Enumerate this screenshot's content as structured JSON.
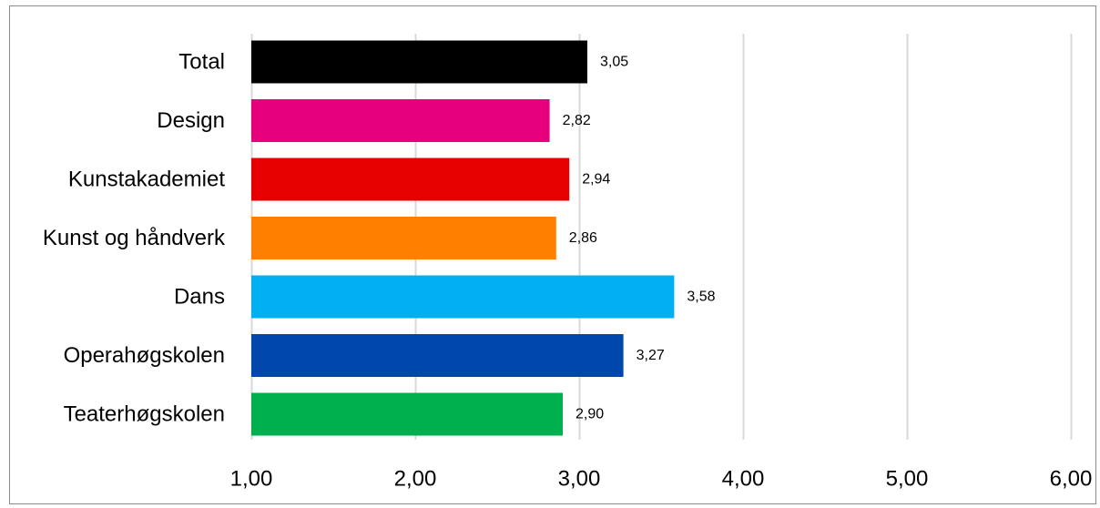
{
  "chart_data": {
    "type": "bar",
    "orientation": "horizontal",
    "title": "",
    "xlabel": "",
    "ylabel": "",
    "categories": [
      "Total",
      "Design",
      "Kunstakademiet",
      "Kunst og håndverk",
      "Dans",
      "Operahøgskolen",
      "Teaterhøgskolen"
    ],
    "values": [
      3.05,
      2.82,
      2.94,
      2.86,
      3.58,
      3.27,
      2.9
    ],
    "value_labels": [
      "3,05",
      "2,82",
      "2,94",
      "2,86",
      "3,58",
      "3,27",
      "2,90"
    ],
    "colors": [
      "#000000",
      "#e6007e",
      "#e60000",
      "#ff7f00",
      "#00b0f0",
      "#0047ab",
      "#00b04f"
    ],
    "xlim": [
      1,
      6
    ],
    "x_ticks": [
      1,
      2,
      3,
      4,
      5,
      6
    ],
    "x_tick_labels": [
      "1,00",
      "2,00",
      "3,00",
      "4,00",
      "5,00",
      "6,00"
    ],
    "grid": "vertical",
    "grid_color": "#d9d9d9",
    "legend": "none"
  }
}
